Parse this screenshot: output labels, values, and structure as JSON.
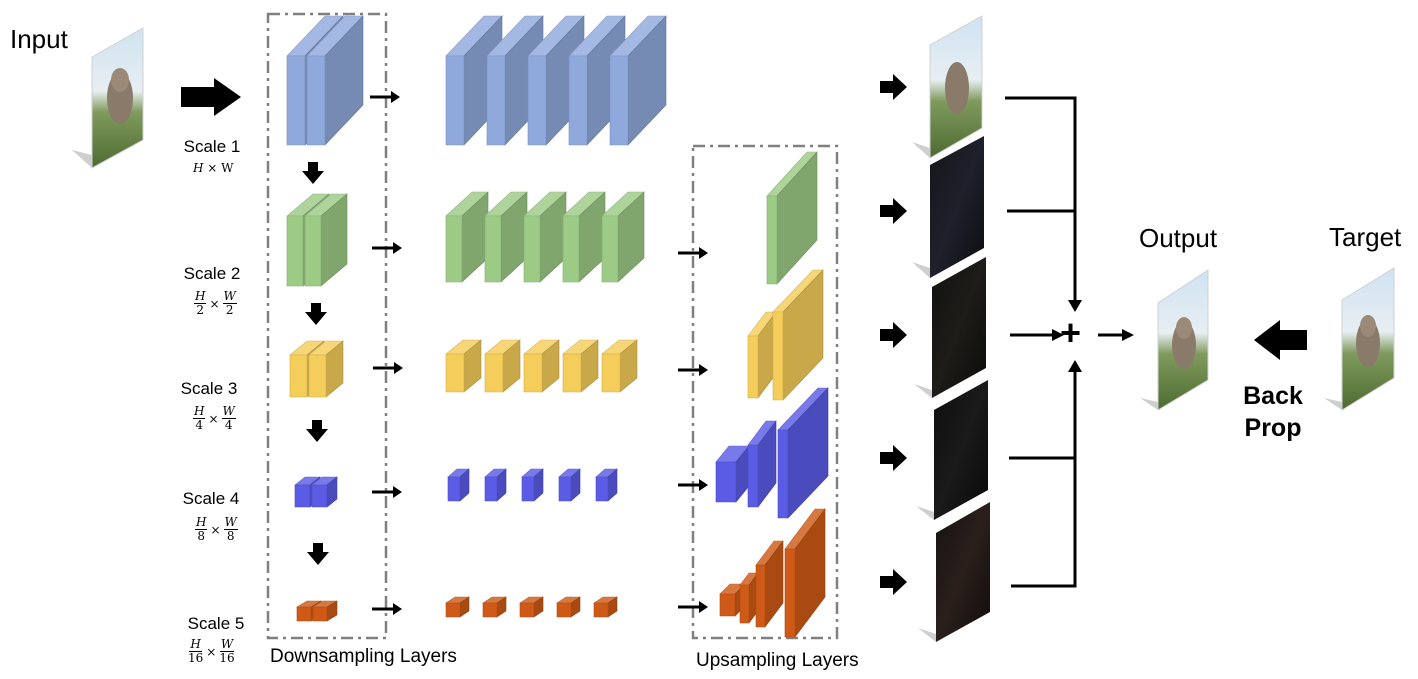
{
  "labels": {
    "input": "Input",
    "output": "Output",
    "target": "Target",
    "back_prop_line1": "Back",
    "back_prop_line2": "Prop",
    "downsampling": "Downsampling Layers",
    "upsampling": "Upsampling Layers",
    "plus": "+"
  },
  "scales": [
    {
      "name": "Scale 1",
      "h": "H",
      "w": "W",
      "h_den": "",
      "w_den": ""
    },
    {
      "name": "Scale 2",
      "h": "H",
      "w": "W",
      "h_den": "2",
      "w_den": "2"
    },
    {
      "name": "Scale 3",
      "h": "H",
      "w": "W",
      "h_den": "4",
      "w_den": "4"
    },
    {
      "name": "Scale 4",
      "h": "H",
      "w": "W",
      "h_den": "8",
      "w_den": "8"
    },
    {
      "name": "Scale 5",
      "h": "H",
      "w": "W",
      "h_den": "16",
      "w_den": "16"
    }
  ],
  "colors": {
    "scale1": "#8fa9dc",
    "scale2": "#9ccb86",
    "scale3": "#f5cd5a",
    "scale4": "#5a5ce6",
    "scale5": "#cf5a17",
    "dashed_box": "#808080",
    "arrow": "#000000"
  },
  "icons": {
    "input_image": "elephant-photo",
    "output_image": "elephant-photo",
    "target_image": "elephant-photo",
    "sum_node": "plus-icon"
  }
}
